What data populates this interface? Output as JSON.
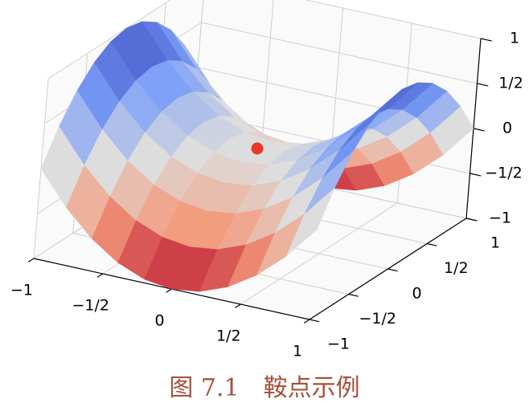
{
  "chart_data": {
    "type": "surface3d",
    "caption": "图 7.1　鞍点示例",
    "x": [
      -1,
      -0.8,
      -0.6,
      -0.4,
      -0.2,
      0,
      0.2,
      0.4,
      0.6,
      0.8,
      1
    ],
    "y": [
      -1,
      -0.8,
      -0.6,
      -0.4,
      -0.2,
      0,
      0.2,
      0.4,
      0.6,
      0.8,
      1
    ],
    "z": [
      [
        0,
        -0.36,
        -0.64,
        -0.84,
        -0.96,
        -1,
        -0.96,
        -0.84,
        -0.64,
        -0.36,
        0
      ],
      [
        0.36,
        0,
        -0.28,
        -0.48,
        -0.6,
        -0.64,
        -0.6,
        -0.48,
        -0.28,
        0,
        0.36
      ],
      [
        0.64,
        0.28,
        0,
        -0.2,
        -0.32,
        -0.36,
        -0.32,
        -0.2,
        0,
        0.28,
        0.64
      ],
      [
        0.84,
        0.48,
        0.2,
        0,
        -0.12,
        -0.16,
        -0.12,
        0,
        0.2,
        0.48,
        0.84
      ],
      [
        0.96,
        0.6,
        0.32,
        0.12,
        0,
        -0.04,
        0,
        0.12,
        0.32,
        0.6,
        0.96
      ],
      [
        1,
        0.64,
        0.36,
        0.16,
        0.04,
        0,
        0.04,
        0.16,
        0.36,
        0.64,
        1
      ],
      [
        0.96,
        0.6,
        0.32,
        0.12,
        0,
        -0.04,
        0,
        0.12,
        0.32,
        0.6,
        0.96
      ],
      [
        0.84,
        0.48,
        0.2,
        0,
        -0.12,
        -0.16,
        -0.12,
        0,
        0.2,
        0.48,
        0.84
      ],
      [
        0.64,
        0.28,
        0,
        -0.2,
        -0.32,
        -0.36,
        -0.32,
        -0.2,
        0,
        0.28,
        0.64
      ],
      [
        0.36,
        0,
        -0.28,
        -0.48,
        -0.6,
        -0.64,
        -0.6,
        -0.48,
        -0.28,
        0,
        0.36
      ],
      [
        0,
        -0.36,
        -0.64,
        -0.84,
        -0.96,
        -1,
        -0.96,
        -0.84,
        -0.64,
        -0.36,
        0
      ]
    ],
    "colormap": [
      "#b40426",
      "#f49a7b",
      "#dddddd",
      "#7b9ff9",
      "#3b4cc0"
    ],
    "xlim": [
      -1,
      1
    ],
    "ylim": [
      -1,
      1
    ],
    "zlim": [
      -1,
      1
    ],
    "xticks": [
      {
        "value": -1,
        "label": "−1"
      },
      {
        "value": -0.5,
        "label": "−1/2"
      },
      0,
      {
        "value": 0.5,
        "label": "1/2"
      },
      1
    ],
    "yticks": [
      {
        "value": -1,
        "label": "−1"
      },
      {
        "value": -0.5,
        "label": "−1/2"
      },
      0,
      {
        "value": 0.5,
        "label": "1/2"
      },
      1
    ],
    "zticks": [
      {
        "value": -1,
        "label": "−1"
      },
      {
        "value": -0.5,
        "label": "−1/2"
      },
      0,
      {
        "value": 0.5,
        "label": "1/2"
      },
      1
    ],
    "grid": true,
    "point": {
      "x": 0,
      "y": 0,
      "z": 0,
      "color": "#e8392b"
    }
  }
}
